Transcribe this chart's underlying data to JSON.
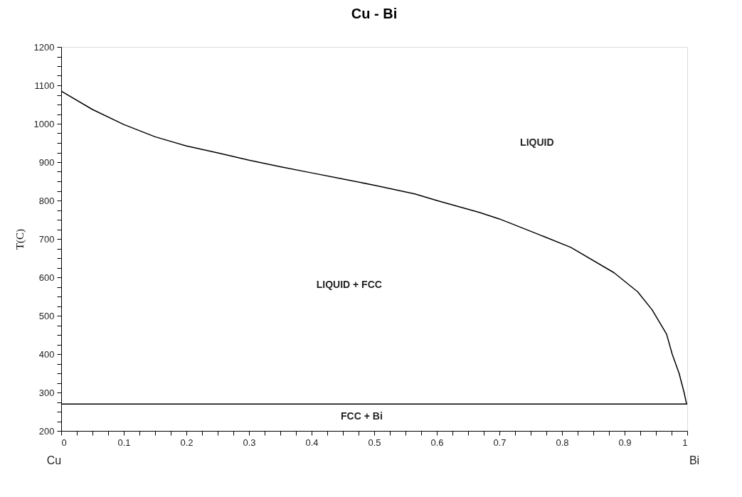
{
  "chart_data": {
    "type": "line",
    "title": "Cu - Bi",
    "ylabel": "T(C)",
    "xlim": [
      0,
      1
    ],
    "ylim": [
      200,
      1200
    ],
    "xticks": [
      0,
      {
        "value": 0.025,
        "label": null
      },
      {
        "value": 0.05,
        "label": null
      },
      {
        "value": 0.075,
        "label": null
      },
      0.1,
      {
        "value": 0.125,
        "label": null
      },
      {
        "value": 0.15,
        "label": null
      },
      {
        "value": 0.175,
        "label": null
      },
      0.2,
      {
        "value": 0.225,
        "label": null
      },
      {
        "value": 0.25,
        "label": null
      },
      {
        "value": 0.275,
        "label": null
      },
      0.3,
      {
        "value": 0.325,
        "label": null
      },
      {
        "value": 0.35,
        "label": null
      },
      {
        "value": 0.375,
        "label": null
      },
      0.4,
      {
        "value": 0.425,
        "label": null
      },
      {
        "value": 0.45,
        "label": null
      },
      {
        "value": 0.475,
        "label": null
      },
      0.5,
      {
        "value": 0.525,
        "label": null
      },
      {
        "value": 0.55,
        "label": null
      },
      {
        "value": 0.575,
        "label": null
      },
      0.6,
      {
        "value": 0.625,
        "label": null
      },
      {
        "value": 0.65,
        "label": null
      },
      {
        "value": 0.675,
        "label": null
      },
      0.7,
      {
        "value": 0.725,
        "label": null
      },
      {
        "value": 0.75,
        "label": null
      },
      {
        "value": 0.775,
        "label": null
      },
      0.8,
      {
        "value": 0.825,
        "label": null
      },
      {
        "value": 0.85,
        "label": null
      },
      {
        "value": 0.875,
        "label": null
      },
      0.9,
      {
        "value": 0.925,
        "label": null
      },
      {
        "value": 0.95,
        "label": null
      },
      {
        "value": 0.975,
        "label": null
      },
      1
    ],
    "yticks": [
      200,
      {
        "value": 225,
        "label": null
      },
      {
        "value": 250,
        "label": null
      },
      {
        "value": 275,
        "label": null
      },
      300,
      {
        "value": 325,
        "label": null
      },
      {
        "value": 350,
        "label": null
      },
      {
        "value": 375,
        "label": null
      },
      400,
      {
        "value": 425,
        "label": null
      },
      {
        "value": 450,
        "label": null
      },
      {
        "value": 475,
        "label": null
      },
      500,
      {
        "value": 525,
        "label": null
      },
      {
        "value": 550,
        "label": null
      },
      {
        "value": 575,
        "label": null
      },
      600,
      {
        "value": 625,
        "label": null
      },
      {
        "value": 650,
        "label": null
      },
      {
        "value": 675,
        "label": null
      },
      700,
      {
        "value": 725,
        "label": null
      },
      {
        "value": 750,
        "label": null
      },
      {
        "value": 775,
        "label": null
      },
      800,
      {
        "value": 825,
        "label": null
      },
      {
        "value": 850,
        "label": null
      },
      {
        "value": 875,
        "label": null
      },
      900,
      {
        "value": 925,
        "label": null
      },
      {
        "value": 950,
        "label": null
      },
      {
        "value": 975,
        "label": null
      },
      1000,
      {
        "value": 1025,
        "label": null
      },
      {
        "value": 1050,
        "label": null
      },
      {
        "value": 1075,
        "label": null
      },
      1100,
      {
        "value": 1125,
        "label": null
      },
      {
        "value": 1150,
        "label": null
      },
      {
        "value": 1175,
        "label": null
      },
      1200
    ],
    "grid": false,
    "marker": "none",
    "line_style": "solid",
    "series": [
      {
        "color": "#000000",
        "x": [
          0,
          0.05,
          0.1,
          0.15,
          0.2,
          0.25,
          0.3,
          0.35,
          0.4,
          0.45,
          0.5,
          0.565,
          0.6,
          0.668,
          0.7,
          0.756,
          0.814,
          0.883,
          0.921,
          0.944,
          0.967,
          0.976,
          0.987,
          0.995,
          0.999
        ],
        "values": [
          1085,
          1037,
          998,
          966,
          942,
          924,
          905,
          888,
          872,
          856,
          840,
          817,
          800,
          769,
          752,
          716,
          678,
          612,
          562,
          515,
          452,
          400,
          350,
          300,
          270
        ]
      },
      {
        "color": "#000000",
        "x": [
          0,
          1
        ],
        "values": [
          270,
          270
        ]
      }
    ],
    "annotations": [
      "LIQUID",
      "LIQUID + FCC",
      "FCC        + Bi",
      "Cu",
      "Bi"
    ]
  }
}
